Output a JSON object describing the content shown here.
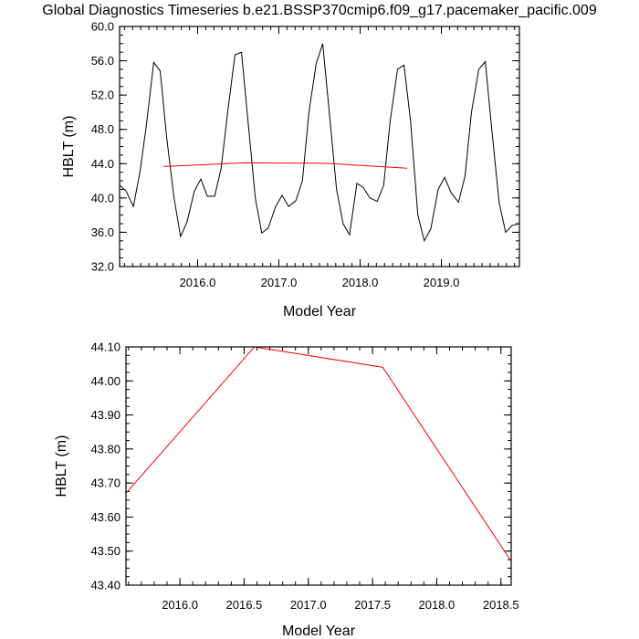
{
  "title": "Global Diagnostics Timeseries b.e21.BSSP370cmip6.f09_g17.pacemaker_pacific.009",
  "chart_data": [
    {
      "type": "line",
      "xlabel": "Model Year",
      "ylabel": "HBLT (m)",
      "xlim": [
        2015.04,
        2019.96
      ],
      "ylim": [
        32.0,
        60.0
      ],
      "xticks": [
        2016.0,
        2017.0,
        2018.0,
        2019.0
      ],
      "xtick_labels": [
        "2016.0",
        "2017.0",
        "2018.0",
        "2019.0"
      ],
      "yticks": [
        32.0,
        36.0,
        40.0,
        44.0,
        48.0,
        52.0,
        56.0,
        60.0
      ],
      "ytick_labels": [
        "32.0",
        "36.0",
        "40.0",
        "44.0",
        "48.0",
        "52.0",
        "56.0",
        "60.0"
      ],
      "grid": false,
      "series": [
        {
          "color": "#000000",
          "x": [
            2015.04,
            2015.12,
            2015.21,
            2015.29,
            2015.37,
            2015.46,
            2015.54,
            2015.62,
            2015.71,
            2015.79,
            2015.87,
            2015.96,
            2016.04,
            2016.12,
            2016.21,
            2016.29,
            2016.37,
            2016.46,
            2016.54,
            2016.62,
            2016.71,
            2016.79,
            2016.87,
            2016.96,
            2017.04,
            2017.12,
            2017.21,
            2017.29,
            2017.37,
            2017.46,
            2017.54,
            2017.62,
            2017.71,
            2017.79,
            2017.87,
            2017.96,
            2018.04,
            2018.12,
            2018.21,
            2018.29,
            2018.37,
            2018.46,
            2018.54,
            2018.62,
            2018.71,
            2018.79,
            2018.87,
            2018.96,
            2019.04,
            2019.12,
            2019.21,
            2019.29,
            2019.37,
            2019.46,
            2019.54,
            2019.62,
            2019.71,
            2019.79,
            2019.87,
            2019.96
          ],
          "values": [
            41.5,
            40.8,
            39.0,
            43.0,
            48.5,
            55.8,
            54.8,
            47.0,
            40.0,
            35.5,
            37.2,
            40.8,
            42.2,
            40.2,
            40.2,
            43.5,
            50.0,
            56.7,
            57.0,
            49.0,
            40.0,
            35.9,
            36.5,
            39.0,
            40.3,
            39.0,
            39.7,
            42.0,
            50.0,
            55.7,
            58.0,
            50.0,
            41.0,
            37.0,
            35.7,
            41.7,
            41.2,
            40.0,
            39.6,
            41.5,
            49.0,
            55.0,
            55.5,
            49.0,
            38.0,
            35.0,
            36.4,
            41.0,
            42.4,
            40.6,
            39.5,
            42.5,
            50.0,
            55.0,
            55.9,
            48.0,
            39.5,
            36.0,
            36.8,
            37.0
          ]
        },
        {
          "color": "#ff0000",
          "x": [
            2015.58,
            2016.58,
            2017.58,
            2018.58
          ],
          "values": [
            43.67,
            44.1,
            44.04,
            43.47
          ]
        }
      ]
    },
    {
      "type": "line",
      "xlabel": "Model Year",
      "ylabel": "HBLT (m)",
      "xlim": [
        2015.58,
        2018.58
      ],
      "ylim": [
        43.4,
        44.1
      ],
      "xticks": [
        2016.0,
        2016.5,
        2017.0,
        2017.5,
        2018.0,
        2018.5
      ],
      "xtick_labels": [
        "2016.0",
        "2016.5",
        "2017.0",
        "2017.5",
        "2018.0",
        "2018.5"
      ],
      "yticks": [
        43.4,
        43.5,
        43.6,
        43.7,
        43.8,
        43.9,
        44.0,
        44.1
      ],
      "ytick_labels": [
        "43.40",
        "43.50",
        "43.60",
        "43.70",
        "43.80",
        "43.90",
        "44.00",
        "44.10"
      ],
      "grid": false,
      "series": [
        {
          "color": "#ff0000",
          "x": [
            2015.58,
            2016.58,
            2017.58,
            2018.58
          ],
          "values": [
            43.67,
            44.1,
            44.04,
            43.47
          ]
        }
      ]
    }
  ]
}
